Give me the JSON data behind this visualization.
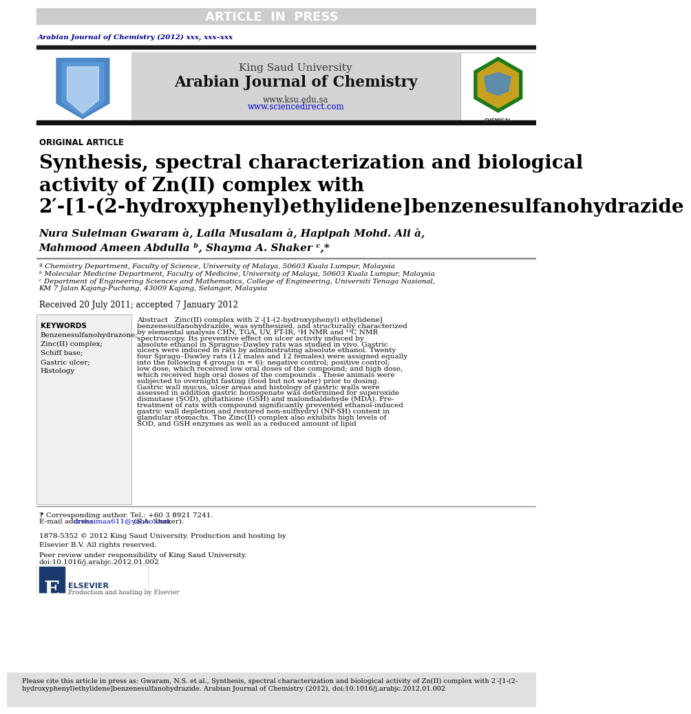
{
  "page_bg": "#ffffff",
  "header_bar_color": "#cccccc",
  "header_bar_text": "ARTICLE  IN  PRESS",
  "header_bar_text_color": "#ffffff",
  "journal_ref_text": "Arabian Journal of Chemistry (2012) xxx, xxx–xxx",
  "journal_ref_color": "#00008B",
  "thick_bar_color": "#1a1a1a",
  "header_bg": "#d4d4d4",
  "header_center_text1": "King Saud University",
  "header_center_text2": "Arabian Journal of Chemistry",
  "header_center_text3": "www.ksu.edu.sa",
  "header_center_text4": "www.sciencedirect.com",
  "header_center_text4_color": "#0000cc",
  "section_label": "ORIGINAL ARTICLE",
  "section_label_color": "#000000",
  "article_title_line1": "Synthesis, spectral characterization and biological",
  "article_title_line2": "activity of Zn(II) complex with",
  "article_title_line3": "2′-[1-(2-hydroxyphenyl)ethylidene]benzenesulfanohydrazide",
  "article_title_color": "#000000",
  "authors_line1": "Nura Suleiman Gwaram à, Laila Musalam à, Hapipah Mohd. Ali à,",
  "authors_line2": "Mahmood Ameen Abdulla ᵇ, Shayma A. Shaker ᶜ,*",
  "authors_color": "#000000",
  "affil_a": "ª Chemistry Department, Faculty of Science, University of Malaya, 50603 Kuala Lumpur, Malaysia",
  "affil_b": "ᵇ Molecular Medicine Department, Faculty of Medicine, University of Malaya, 50603 Kuala Lumpur, Malaysia",
  "affil_c": "ᶜ Department of Engineering Sciences and Mathematics, College of Engineering, Universiti Tenaga Nasional,",
  "affil_c2": "KM 7 Jalan Kajang-Puchong, 43009 Kajang, Selangor, Malaysia",
  "affil_color": "#000000",
  "received_text": "Received 20 July 2011; accepted 7 January 2012",
  "received_color": "#000000",
  "keywords_box_bg": "#f0f0f0",
  "keywords_title": "KEYWORDS",
  "keywords_list": [
    "Benzenesulfanohydrazone;",
    "Zinc(II) complex;",
    "Schiff base;",
    "Gastric ulcer;",
    "Histology"
  ],
  "abstract_title": "Abstract",
  "abstract_body": "Zinc(II) complex with 2′-[1-(2-hydroxyphenyl) ethylidene] benzenesulfanohydrazide, was synthesized, and structurally characterized by elemental analysis CHN, TGA, UV, FT-IR, ¹H NMR and ¹³C NMR spectroscopy. Its preventive effect on ulcer activity induced by absolute ethanol in Sprague–Dawley rats was studied in vivo. Gastric ulcers were induced in rats by administrating absolute ethanol. Twenty four Spragu–Dawley rats (12 males and 12 females) were assigned equally into the following 4 groups (n = 6): negative control; positive control; low dose, which received low oral doses of the compound; and high dose, which received high oral doses of the compounds . These animals were subjected to overnight fasting (food but not water) prior to dosing. Gastric wall mucus, ulcer areas and histology of gastric walls were assessed in addition gastric homogenate was determined for superoxide dismutase (SOD), glutathione (GSH) and malondialdehyde (MDA). Pre-treatment of rats with compound significantly prevented ethanol-induced gastric wall depletion and restored non-sulfhydryl (NP-SH) content in glandular stomachs. The Zinc(II) complex also exhibits high levels of SOD, and GSH enzymes as well as a reduced amount of lipid",
  "corresponding_note": "⁋ Corresponding author. Tel.: +60 3 8921 7241.",
  "email_label": "E-mail address: ",
  "email_addr": "drshaimaa611@yahoo.com",
  "email_suffix": " (S.A. Shaker).",
  "email_color": "#0000cc",
  "copyright_text": "1878-5352 © 2012 King Saud University. Production and hosting by\nElsevier B.V. All rights reserved.",
  "peer_review_text": "Peer review under responsibility of King Saud University.",
  "doi_text": "doi:10.1016/j.arabjc.2012.01.002",
  "footer_cite": "Please cite this article in press as: Gwaram, N.S. et al., Synthesis, spectral characterization and biological activity of Zn(II) complex with 2′-[1-(2-\nhydroxyphenyl)ethylidene]benzenesulfanohydrazide. Arabian Journal of Chemistry (2012), doi:10.1016/j.arabjc.2012.01.002",
  "footer_bg": "#e0e0e0"
}
